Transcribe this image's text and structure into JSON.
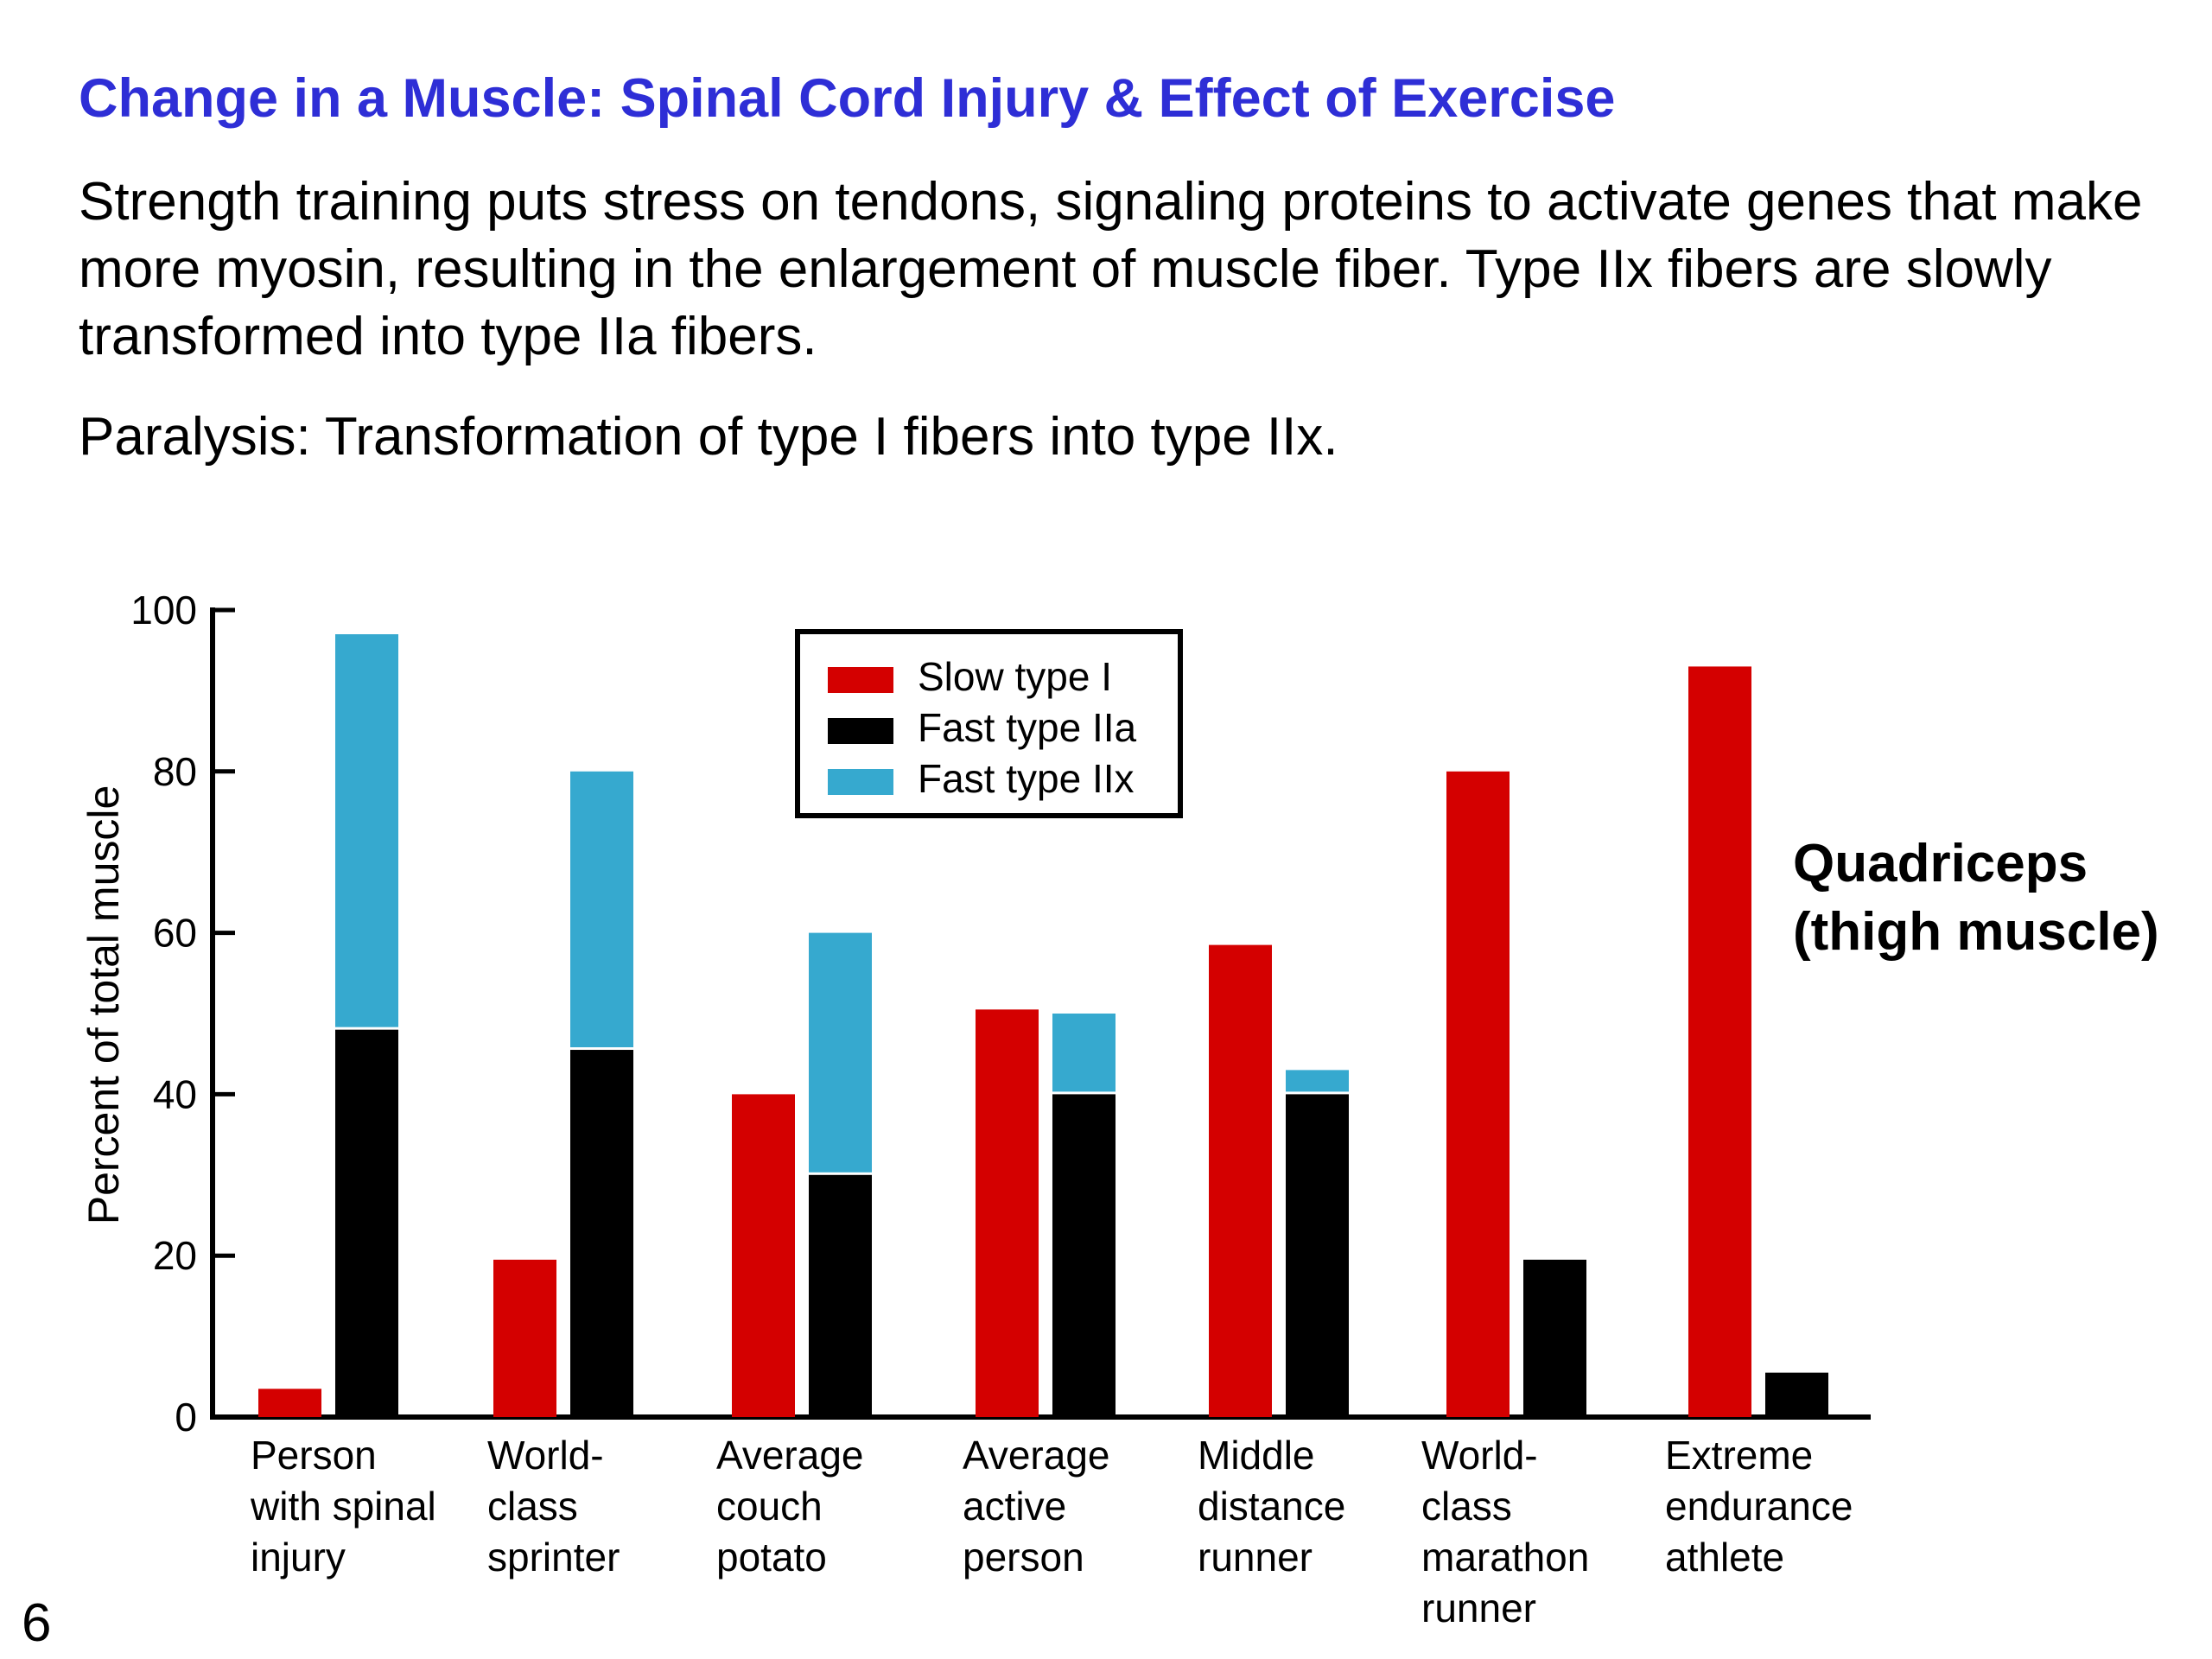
{
  "slide": {
    "title": "Change in a Muscle: Spinal Cord Injury & Effect of Exercise",
    "paragraph1": "Strength training puts stress on tendons, signaling proteins to activate genes that make more myosin, resulting in the enlargement of muscle fiber.  Type IIx fibers are slowly transformed into type IIa fibers.",
    "paragraph2": "Paralysis:  Transformation of type I fibers into type IIx.",
    "page_number": "6"
  },
  "colors": {
    "title": "#2e2ed6",
    "slow_type_1": "#d40000",
    "fast_type_2a": "#000000",
    "fast_type_2x": "#36a9cf"
  },
  "chart_data": {
    "type": "bar",
    "title": "",
    "ylabel": "Percent of total muscle",
    "xlabel": "",
    "ylim": [
      0,
      100
    ],
    "yticks": [
      "0",
      "20",
      "40",
      "60",
      "80",
      "100"
    ],
    "annotation": [
      "Quadriceps",
      "(thigh muscle)"
    ],
    "legend_position": "top-center",
    "categories": [
      [
        "Person",
        "with spinal",
        "injury"
      ],
      [
        "World-",
        "class",
        "sprinter"
      ],
      [
        "Average",
        "couch",
        "potato"
      ],
      [
        "Average",
        "active",
        "person"
      ],
      [
        "Middle",
        "distance",
        "runner"
      ],
      [
        "World-",
        "class",
        "marathon",
        "runner"
      ],
      [
        "Extreme",
        "endurance",
        "athlete"
      ]
    ],
    "series": [
      {
        "name": "Slow type I",
        "color": "#d40000",
        "values": [
          3.5,
          19.5,
          40,
          50.5,
          58.5,
          80,
          93
        ]
      },
      {
        "name": "Fast type IIa",
        "color": "#000000",
        "values": [
          48,
          45.5,
          30,
          40,
          40,
          19.5,
          5.5
        ]
      },
      {
        "name": "Fast type IIx",
        "color": "#36a9cf",
        "values": [
          49,
          34.5,
          30,
          10,
          3,
          0,
          0
        ]
      }
    ]
  }
}
